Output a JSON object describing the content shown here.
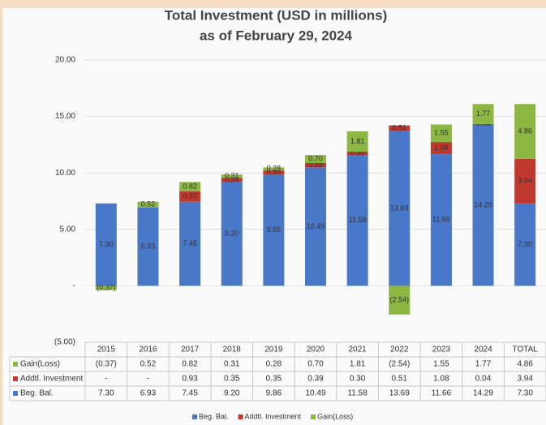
{
  "chart_data": {
    "type": "bar",
    "stacked": true,
    "title": "Total Investment (USD in millions)",
    "subtitle": "as of February 29, 2024",
    "categories": [
      "2015",
      "2016",
      "2017",
      "2018",
      "2019",
      "2020",
      "2021",
      "2022",
      "2023",
      "2024",
      "TOTAL"
    ],
    "series": [
      {
        "name": "Beg. Bal.",
        "color": "#4a78c8",
        "values": [
          7.3,
          6.93,
          7.45,
          9.2,
          9.86,
          10.49,
          11.58,
          13.69,
          11.66,
          14.29,
          7.3
        ],
        "value_labels": [
          "7.30",
          "6.93",
          "7.45",
          "9.20",
          "9.86",
          "10.49",
          "11.58",
          "13.69",
          "11.66",
          "14.29",
          "7.30"
        ]
      },
      {
        "name": "Addtl. Investment",
        "color": "#c0392f",
        "values": [
          null,
          null,
          0.93,
          0.35,
          0.35,
          0.39,
          0.3,
          0.51,
          1.08,
          0.04,
          3.94
        ],
        "value_labels": [
          "-",
          "-",
          "0.93",
          "0.35",
          "0.35",
          "0.39",
          "0.30",
          "0.51",
          "1.08",
          "0.04",
          "3.94"
        ]
      },
      {
        "name": "Gain(Loss)",
        "color": "#8db743",
        "values": [
          -0.37,
          0.52,
          0.82,
          0.31,
          0.28,
          0.7,
          1.81,
          -2.54,
          1.55,
          1.77,
          4.86
        ],
        "value_labels": [
          "(0.37)",
          "0.52",
          "0.82",
          "0.31",
          "0.28",
          "0.70",
          "1.81",
          "(2.54)",
          "1.55",
          "1.77",
          "4.86"
        ]
      }
    ],
    "ylim": [
      -5,
      20
    ],
    "yticks": [
      {
        "value": -5,
        "label": "(5.00)"
      },
      {
        "value": 0,
        "label": "-"
      },
      {
        "value": 5,
        "label": "5.00"
      },
      {
        "value": 10,
        "label": "10.00"
      },
      {
        "value": 15,
        "label": "15.00"
      },
      {
        "value": 20,
        "label": "20.00"
      }
    ],
    "grid": true,
    "legend": "bottom"
  }
}
